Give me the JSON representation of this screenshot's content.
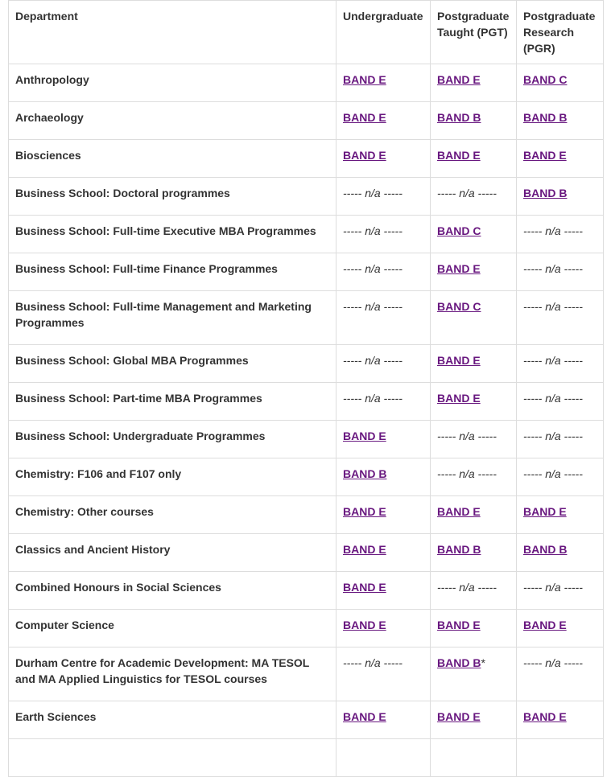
{
  "headers": {
    "department": "Department",
    "undergraduate": "Undergraduate",
    "pgt": "Postgraduate Taught (PGT)",
    "pgr": "Postgraduate Research (PGR)"
  },
  "na_text": "----- n/a -----",
  "link_color": "#68177f",
  "rows": [
    {
      "department": "Anthropology",
      "ug": "BAND E",
      "pgt": "BAND E",
      "pgr": "BAND C"
    },
    {
      "department": "Archaeology",
      "ug": "BAND E",
      "pgt": "BAND B",
      "pgr": "BAND B"
    },
    {
      "department": "Biosciences",
      "ug": "BAND E",
      "pgt": "BAND E",
      "pgr": "BAND E"
    },
    {
      "department": "Business School: Doctoral programmes",
      "ug": "----- n/a -----",
      "pgt": "----- n/a -----",
      "pgr": "BAND B"
    },
    {
      "department": "Business School: Full-time Executive MBA Programmes",
      "ug": "----- n/a -----",
      "pgt": "BAND C",
      "pgr": "----- n/a -----"
    },
    {
      "department": "Business School: Full-time Finance Programmes",
      "ug": "----- n/a -----",
      "pgt": "BAND E",
      "pgr": "----- n/a -----"
    },
    {
      "department": "Business School: Full-time Management and Marketing Programmes",
      "ug": "----- n/a -----",
      "pgt": "BAND C",
      "pgr": "----- n/a -----"
    },
    {
      "department": "Business School: Global MBA Programmes",
      "ug": "----- n/a -----",
      "pgt": "BAND E",
      "pgr": "----- n/a -----"
    },
    {
      "department": "Business School: Part-time MBA Programmes",
      "ug": "----- n/a -----",
      "pgt": "BAND E",
      "pgr": "----- n/a -----"
    },
    {
      "department": "Business School: Undergraduate Programmes",
      "ug": "BAND E",
      "pgt": "----- n/a -----",
      "pgr": "----- n/a -----"
    },
    {
      "department": "Chemistry: F106 and F107 only",
      "ug": "BAND B",
      "pgt": "----- n/a -----",
      "pgr": "----- n/a -----"
    },
    {
      "department": "Chemistry: Other courses",
      "ug": "BAND E",
      "pgt": "BAND E",
      "pgr": "BAND E"
    },
    {
      "department": "Classics and Ancient History",
      "ug": "BAND E",
      "pgt": "BAND B",
      "pgr": "BAND B"
    },
    {
      "department": "Combined Honours in Social Sciences",
      "ug": "BAND E",
      "pgt": "----- n/a -----",
      "pgr": "----- n/a -----"
    },
    {
      "department": "Computer Science",
      "ug": "BAND E",
      "pgt": "BAND E",
      "pgr": "BAND E"
    },
    {
      "department": "Durham Centre for Academic Development: MA TESOL and MA Applied Linguistics for TESOL courses",
      "ug": "----- n/a -----",
      "pgt": "BAND B",
      "pgt_suffix": "*",
      "pgr": "----- n/a -----"
    },
    {
      "department": "Earth Sciences",
      "ug": "BAND E",
      "pgt": "BAND E",
      "pgr": "BAND E"
    },
    {
      "department": "",
      "ug": "",
      "pgt": "",
      "pgr": ""
    }
  ]
}
